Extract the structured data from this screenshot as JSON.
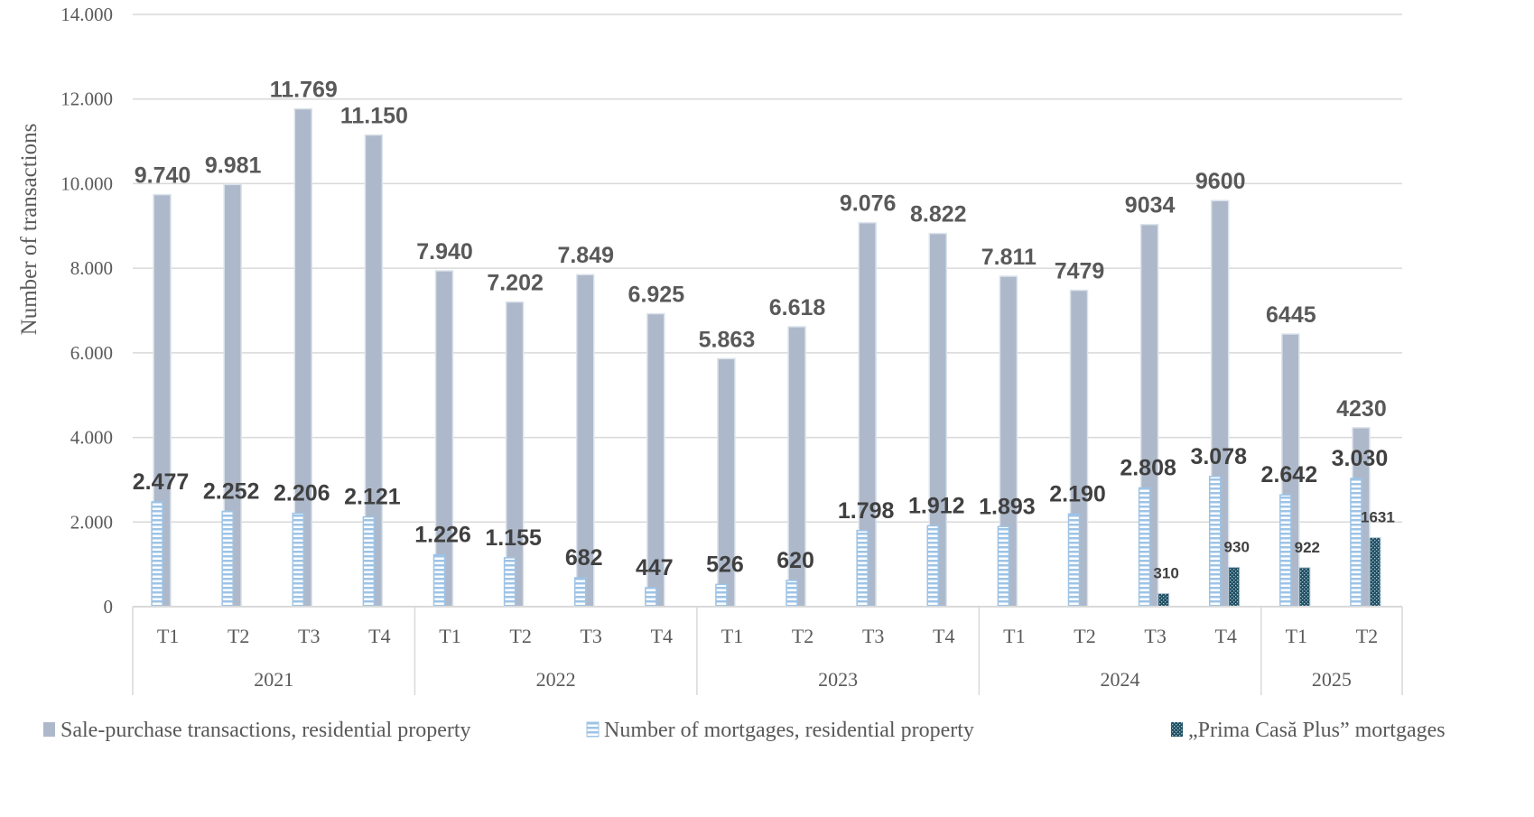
{
  "chart_data": {
    "type": "bar",
    "title": "",
    "xlabel": "",
    "ylabel": "Number of transactions",
    "ylim": [
      0,
      14000
    ],
    "yticks": [
      0,
      2000,
      4000,
      6000,
      8000,
      10000,
      12000,
      14000
    ],
    "ytick_labels": [
      "0",
      "2.000",
      "4.000",
      "6.000",
      "8.000",
      "10.000",
      "12.000",
      "14.000"
    ],
    "grid": true,
    "legend_position": "bottom",
    "groups": [
      {
        "label": "2021",
        "categories": [
          "T1",
          "T2",
          "T3",
          "T4"
        ]
      },
      {
        "label": "2022",
        "categories": [
          "T1",
          "T2",
          "T3",
          "T4"
        ]
      },
      {
        "label": "2023",
        "categories": [
          "T1",
          "T2",
          "T3",
          "T4"
        ]
      },
      {
        "label": "2024",
        "categories": [
          "T1",
          "T2",
          "T3",
          "T4"
        ]
      },
      {
        "label": "2025",
        "categories": [
          "T1",
          "T2"
        ]
      }
    ],
    "categories": [
      "2021 T1",
      "2021 T2",
      "2021 T3",
      "2021 T4",
      "2022 T1",
      "2022 T2",
      "2022 T3",
      "2022 T4",
      "2023 T1",
      "2023 T2",
      "2023 T3",
      "2023 T4",
      "2024 T1",
      "2024 T2",
      "2024 T3",
      "2024 T4",
      "2025 T1",
      "2025 T2"
    ],
    "series": [
      {
        "name": "Sale-purchase transactions, residential property",
        "color": "#ADB9CA",
        "pattern": "solid",
        "values": [
          9740,
          9981,
          11769,
          11150,
          7940,
          7202,
          7849,
          6925,
          5863,
          6618,
          9076,
          8822,
          7811,
          7479,
          9034,
          9600,
          6445,
          4230
        ],
        "labels": [
          "9.740",
          "9.981",
          "11.769",
          "11.150",
          "7.940",
          "7.202",
          "7.849",
          "6.925",
          "5.863",
          "6.618",
          "9.076",
          "8.822",
          "7.811",
          "7479",
          "9034",
          "9600",
          "6445",
          "4230"
        ]
      },
      {
        "name": "Number of mortgages, residential property",
        "color": "#9DC3E6",
        "pattern": "horizontal-stripes",
        "values": [
          2477,
          2252,
          2206,
          2121,
          1226,
          1155,
          682,
          447,
          526,
          620,
          1798,
          1912,
          1893,
          2190,
          2808,
          3078,
          2642,
          3030
        ],
        "labels": [
          "2.477",
          "2.252",
          "2.206",
          "2.121",
          "1.226",
          "1.155",
          "682",
          "447",
          "526",
          "620",
          "1.798",
          "1.912",
          "1.893",
          "2.190",
          "2.808",
          "3.078",
          "2.642",
          "3.030"
        ]
      },
      {
        "name": "„Prima Casă Plus” mortgages",
        "color": "#1F4E61",
        "pattern": "dotted",
        "values": [
          null,
          null,
          null,
          null,
          null,
          null,
          null,
          null,
          null,
          null,
          null,
          null,
          null,
          null,
          310,
          930,
          922,
          1631
        ],
        "labels": [
          null,
          null,
          null,
          null,
          null,
          null,
          null,
          null,
          null,
          null,
          null,
          null,
          null,
          null,
          "310",
          "930",
          "922",
          "1631"
        ]
      }
    ]
  }
}
